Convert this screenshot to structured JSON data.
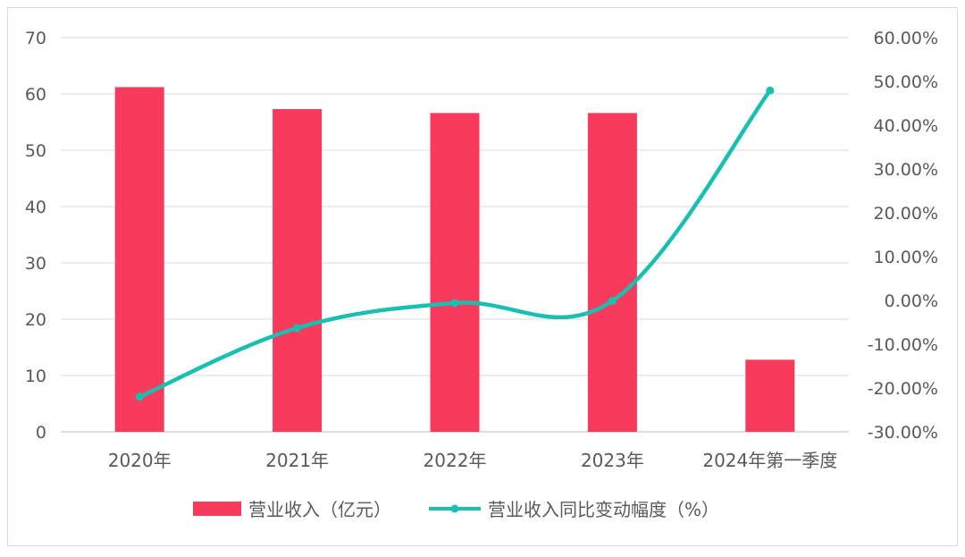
{
  "chart_data": {
    "type": "bar",
    "categories": [
      "2020年",
      "2021年",
      "2022年",
      "2023年",
      "2024年第一季度"
    ],
    "series": [
      {
        "name": "营业收入（亿元）",
        "type": "bar",
        "axis": "left",
        "color": "#F83A5C",
        "values": [
          61.2,
          57.3,
          56.6,
          56.6,
          12.8
        ]
      },
      {
        "name": "营业收入同比变动幅度（%）",
        "type": "line",
        "axis": "right",
        "color": "#1ABFB0",
        "values": [
          -22.0,
          -6.3,
          -0.6,
          -0.1,
          47.9
        ]
      }
    ],
    "y_left": {
      "min": 0,
      "max": 70,
      "step": 10,
      "tick_labels": [
        "0",
        "10",
        "20",
        "30",
        "40",
        "50",
        "60",
        "70"
      ]
    },
    "y_right": {
      "min": -30,
      "max": 60,
      "step": 10,
      "tick_labels": [
        "-30.00%",
        "-20.00%",
        "-10.00%",
        "0.00%",
        "10.00%",
        "20.00%",
        "30.00%",
        "40.00%",
        "50.00%",
        "60.00%"
      ]
    },
    "grid": true,
    "legend_position": "bottom",
    "title": ""
  }
}
